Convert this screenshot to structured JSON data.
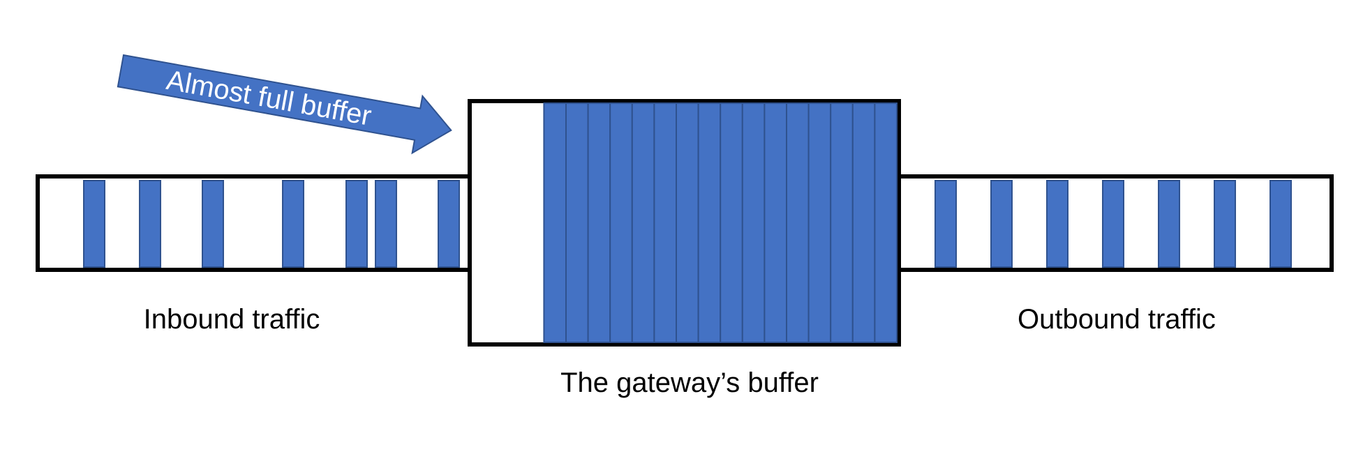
{
  "labels": {
    "inbound": "Inbound traffic",
    "outbound": "Outbound traffic",
    "buffer": "The gateway’s buffer",
    "arrow": "Almost full buffer"
  },
  "colors": {
    "packet_fill": "#4472c4",
    "packet_stroke": "#2f528f",
    "outline": "#000000",
    "background": "#ffffff"
  },
  "inbound_packet_count": 7,
  "outbound_packet_count": 7,
  "buffer_fill": {
    "filled_slots": 16
  }
}
